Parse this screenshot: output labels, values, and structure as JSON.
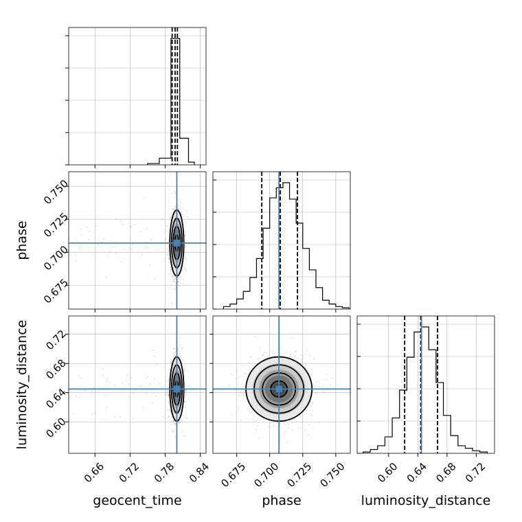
{
  "chart_data": {
    "type": "corner",
    "parameters": [
      "geocent_time",
      "phase",
      "luminosity_distance"
    ],
    "axis_labels": {
      "geocent_time": "geocent_time",
      "phase": "phase",
      "luminosity_distance": "luminosity_distance"
    },
    "ranges": {
      "geocent_time": [
        0.615,
        0.85
      ],
      "phase": [
        0.657,
        0.761
      ],
      "luminosity_distance": [
        0.557,
        0.745
      ]
    },
    "ticks": {
      "geocent_time": [
        0.66,
        0.72,
        0.78,
        0.84
      ],
      "phase": [
        0.675,
        0.7,
        0.725,
        0.75
      ],
      "luminosity_distance": [
        0.6,
        0.64,
        0.68,
        0.72
      ]
    },
    "tick_labels": {
      "geocent_time": [
        "0.66",
        "0.72",
        "0.78",
        "0.84"
      ],
      "phase": [
        "0.675",
        "0.700",
        "0.725",
        "0.750"
      ],
      "luminosity_distance": [
        "0.60",
        "0.64",
        "0.68",
        "0.72"
      ]
    },
    "truths": {
      "geocent_time": 0.8,
      "phase": 0.707,
      "luminosity_distance": 0.645
    },
    "quantiles_16_50_84": {
      "geocent_time": [
        0.792,
        0.797,
        0.801
      ],
      "phase": [
        0.694,
        0.708,
        0.721
      ],
      "luminosity_distance": [
        0.622,
        0.644,
        0.667
      ]
    },
    "histograms": {
      "geocent_time": {
        "bin_edges": [
          0.75,
          0.77,
          0.79,
          0.795,
          0.805,
          0.82,
          0.83
        ],
        "heights": [
          0.01,
          0.05,
          0.95,
          0.95,
          0.2,
          0.02
        ]
      },
      "phase": {
        "bin_edges": [
          0.665,
          0.67,
          0.675,
          0.68,
          0.685,
          0.69,
          0.695,
          0.7,
          0.705,
          0.71,
          0.715,
          0.72,
          0.725,
          0.73,
          0.735,
          0.74,
          0.745,
          0.75,
          0.755,
          0.76
        ],
        "heights": [
          0.02,
          0.04,
          0.08,
          0.14,
          0.25,
          0.4,
          0.64,
          0.88,
          0.96,
          1.0,
          0.87,
          0.68,
          0.48,
          0.31,
          0.17,
          0.07,
          0.04,
          0.02,
          0.01
        ]
      },
      "luminosity_distance": {
        "bin_edges": [
          0.565,
          0.575,
          0.585,
          0.595,
          0.605,
          0.615,
          0.625,
          0.635,
          0.645,
          0.655,
          0.665,
          0.675,
          0.685,
          0.695,
          0.705,
          0.715,
          0.725,
          0.735
        ],
        "heights": [
          0.01,
          0.03,
          0.06,
          0.13,
          0.28,
          0.5,
          0.76,
          0.96,
          1.0,
          0.82,
          0.56,
          0.3,
          0.14,
          0.06,
          0.04,
          0.02,
          0.01
        ]
      }
    },
    "contour_levels_sigma": [
      0.5,
      1.0,
      1.5,
      2.0
    ],
    "posterior_widths_sigma": {
      "geocent_time": 0.006,
      "phase": 0.0125,
      "luminosity_distance": 0.022
    },
    "grid": true,
    "colors": {
      "truth": "#4682b4",
      "histogram": "#000000",
      "contour": "#000000",
      "samples": "#888888",
      "grid": "#b0b0b0"
    }
  }
}
